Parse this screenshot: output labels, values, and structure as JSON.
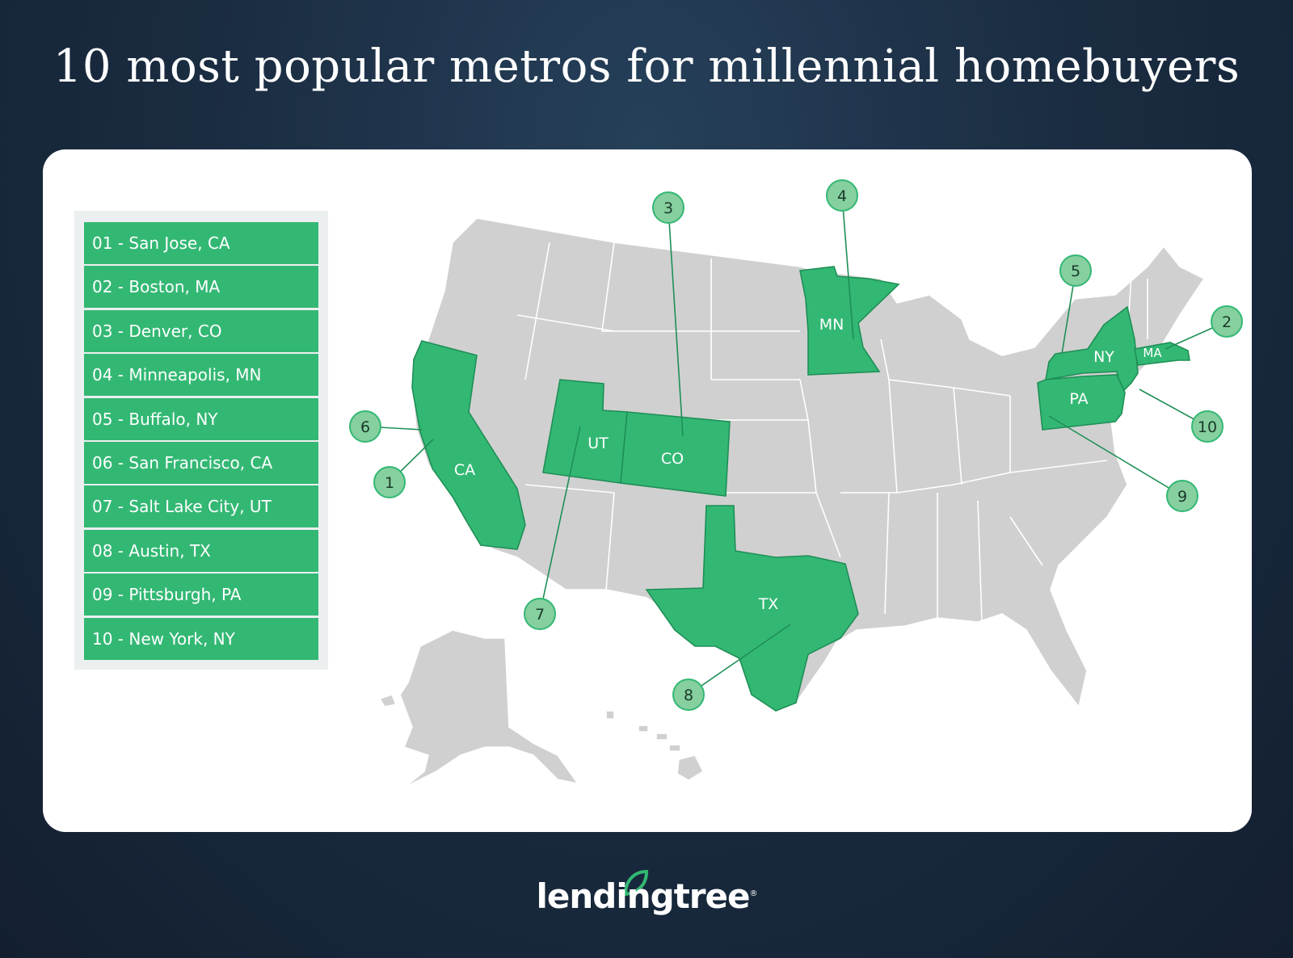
{
  "title": "10 most popular metros for millennial homebuyers",
  "legend": {
    "items": [
      "01 - San Jose, CA",
      "02 - Boston, MA",
      "03 - Denver, CO",
      "04 - Minneapolis, MN",
      "05 - Buffalo, NY",
      "06 - San Francisco, CA",
      "07 - Salt Lake City, UT",
      "08 - Austin, TX",
      "09 - Pittsburgh, PA",
      "10 - New York, NY"
    ]
  },
  "map": {
    "highlighted_states": [
      "CA",
      "MA",
      "CO",
      "MN",
      "NY",
      "UT",
      "TX",
      "PA"
    ],
    "state_labels": {
      "CA": "CA",
      "UT": "UT",
      "CO": "CO",
      "MN": "MN",
      "NY": "NY",
      "MA": "MA",
      "PA": "PA",
      "TX": "TX"
    },
    "markers": [
      "1",
      "2",
      "3",
      "4",
      "5",
      "6",
      "7",
      "8",
      "9",
      "10"
    ],
    "colors": {
      "highlight": "#33b874",
      "base": "#d0d0d1",
      "marker": "#86cf9f"
    }
  },
  "brand": {
    "logo_text": "lendingtree",
    "trademark": "®"
  }
}
